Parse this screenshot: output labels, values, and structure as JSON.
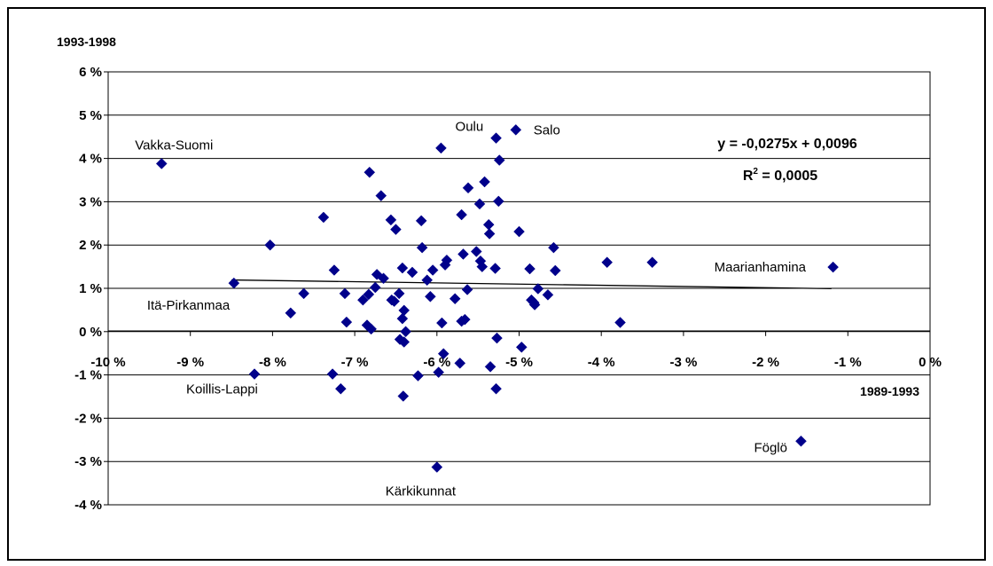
{
  "chart_data": {
    "type": "scatter",
    "title": "",
    "xlabel": "1989-1993",
    "ylabel": "1993-1998",
    "xlim": [
      -10,
      0
    ],
    "ylim": [
      -4,
      6
    ],
    "x_ticks": [
      "-10 %",
      "-9 %",
      "-8 %",
      "-7 %",
      "-6 %",
      "-5 %",
      "-4 %",
      "-3 %",
      "-2 %",
      "-1 %",
      "0 %"
    ],
    "y_ticks": [
      "-4 %",
      "-3 %",
      "-2 %",
      "-1 %",
      "0 %",
      "1 %",
      "2 %",
      "3 %",
      "4 %",
      "5 %",
      "6 %"
    ],
    "grid": "horizontal",
    "marker_color": "#00008B",
    "trendline": {
      "equation": "y = -0,0275x + 0,0096",
      "r2_prefix": "R",
      "r2_sup": "2",
      "r2_suffix": " = 0,0005",
      "x_range": [
        -8.5,
        -1.2
      ],
      "slope": -0.0275,
      "intercept": 0.96
    },
    "labeled_points": [
      {
        "name": "Vakka-Suomi",
        "x": -9.35,
        "y": 3.88
      },
      {
        "name": "Oulu",
        "x": -5.28,
        "y": 4.47
      },
      {
        "name": "Salo",
        "x": -5.04,
        "y": 4.66
      },
      {
        "name": "Maarianhamina",
        "x": -1.18,
        "y": 1.49
      },
      {
        "name": "Itä-Pirkanmaa",
        "x": -8.47,
        "y": 1.12
      },
      {
        "name": "Koillis-Lappi",
        "x": -8.22,
        "y": -0.98
      },
      {
        "name": "Föglö",
        "x": -1.57,
        "y": -2.53
      },
      {
        "name": "Kärkikunnat",
        "x": -6.0,
        "y": -3.13
      }
    ],
    "points": [
      [
        -9.35,
        3.88
      ],
      [
        -8.47,
        1.12
      ],
      [
        -8.03,
        2.0
      ],
      [
        -7.62,
        0.88
      ],
      [
        -7.78,
        0.43
      ],
      [
        -7.38,
        2.64
      ],
      [
        -7.25,
        1.42
      ],
      [
        -7.27,
        -0.98
      ],
      [
        -7.12,
        0.88
      ],
      [
        -7.1,
        0.22
      ],
      [
        -7.17,
        -1.32
      ],
      [
        -6.9,
        0.73
      ],
      [
        -6.85,
        0.15
      ],
      [
        -6.83,
        0.86
      ],
      [
        -6.8,
        0.06
      ],
      [
        -6.82,
        3.68
      ],
      [
        -6.75,
        1.02
      ],
      [
        -6.73,
        1.32
      ],
      [
        -6.68,
        3.14
      ],
      [
        -6.65,
        1.23
      ],
      [
        -6.56,
        2.58
      ],
      [
        -6.55,
        0.73
      ],
      [
        -6.52,
        0.7
      ],
      [
        -6.5,
        2.36
      ],
      [
        -6.46,
        0.88
      ],
      [
        -6.45,
        -0.18
      ],
      [
        -6.42,
        1.47
      ],
      [
        -6.42,
        0.3
      ],
      [
        -6.4,
        -0.24
      ],
      [
        -6.4,
        0.49
      ],
      [
        -6.38,
        0.0
      ],
      [
        -6.41,
        -1.49
      ],
      [
        -6.3,
        1.37
      ],
      [
        -6.23,
        -1.02
      ],
      [
        -6.19,
        2.56
      ],
      [
        -6.18,
        1.94
      ],
      [
        -6.12,
        1.19
      ],
      [
        -6.08,
        0.81
      ],
      [
        -6.05,
        1.42
      ],
      [
        -5.98,
        -0.94
      ],
      [
        -5.95,
        4.24
      ],
      [
        -5.94,
        0.2
      ],
      [
        -5.92,
        -0.51
      ],
      [
        -5.9,
        1.54
      ],
      [
        -5.88,
        1.65
      ],
      [
        -5.78,
        0.76
      ],
      [
        -5.7,
        2.7
      ],
      [
        -5.72,
        -0.73
      ],
      [
        -5.7,
        0.24
      ],
      [
        -5.68,
        1.79
      ],
      [
        -5.66,
        0.28
      ],
      [
        -5.63,
        0.97
      ],
      [
        -5.62,
        3.32
      ],
      [
        -5.52,
        1.85
      ],
      [
        -5.48,
        2.95
      ],
      [
        -5.47,
        1.63
      ],
      [
        -5.45,
        1.5
      ],
      [
        -5.42,
        3.46
      ],
      [
        -5.37,
        2.47
      ],
      [
        -5.36,
        2.26
      ],
      [
        -5.35,
        -0.81
      ],
      [
        -5.29,
        1.46
      ],
      [
        -5.28,
        -1.32
      ],
      [
        -5.27,
        -0.15
      ],
      [
        -5.24,
        3.96
      ],
      [
        -5.25,
        3.01
      ],
      [
        -5.28,
        4.47
      ],
      [
        -5.04,
        4.66
      ],
      [
        -5.0,
        2.31
      ],
      [
        -4.97,
        -0.36
      ],
      [
        -4.87,
        1.45
      ],
      [
        -4.85,
        0.73
      ],
      [
        -4.82,
        0.67
      ],
      [
        -4.81,
        0.62
      ],
      [
        -4.77,
        0.99
      ],
      [
        -4.65,
        0.85
      ],
      [
        -4.58,
        1.94
      ],
      [
        -4.56,
        1.41
      ],
      [
        -3.93,
        1.6
      ],
      [
        -3.77,
        0.21
      ],
      [
        -3.38,
        1.6
      ],
      [
        -1.18,
        1.49
      ],
      [
        -1.57,
        -2.53
      ],
      [
        -6.0,
        -3.13
      ],
      [
        -8.22,
        -0.98
      ]
    ]
  }
}
